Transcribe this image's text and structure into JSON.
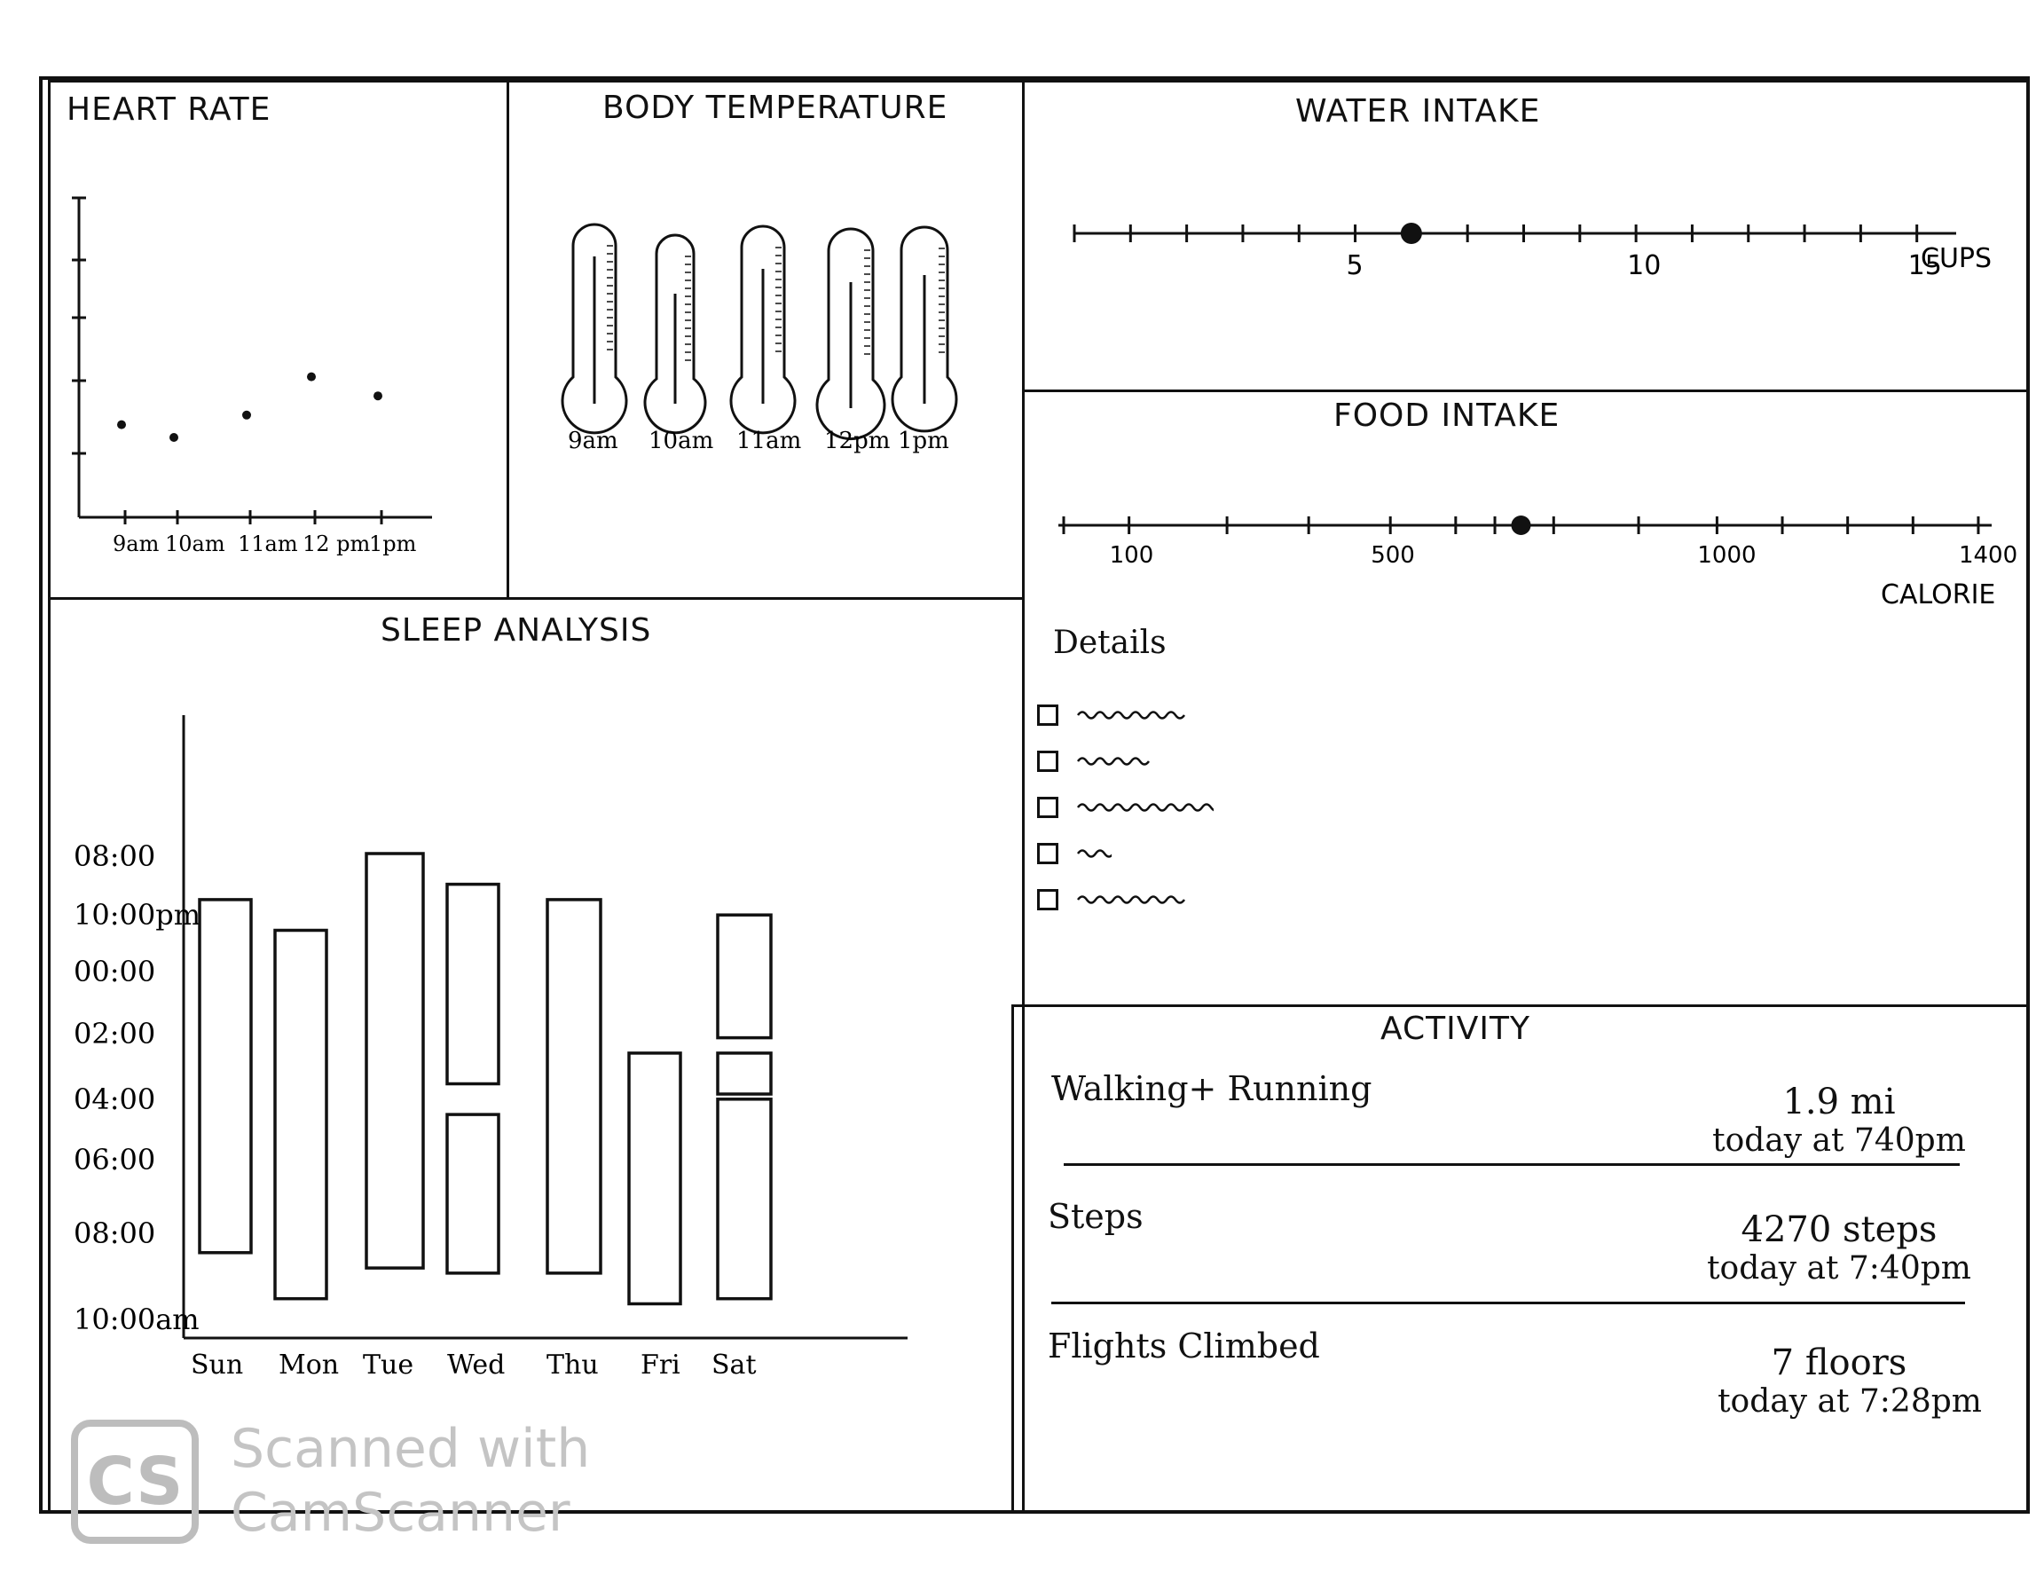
{
  "heart_rate": {
    "title": "HEART RATE",
    "x_ticks": [
      "9am",
      "10am",
      "11am",
      "12 pm",
      "1pm"
    ],
    "points": [
      {
        "x": "9am",
        "level": 0.29
      },
      {
        "x": "10am",
        "level": 0.25
      },
      {
        "x": "11am",
        "level": 0.32
      },
      {
        "x": "12 pm",
        "level": 0.44
      },
      {
        "x": "1pm",
        "level": 0.38
      }
    ]
  },
  "body_temperature": {
    "title": "BODY TEMPERATURE",
    "times": [
      "9am",
      "10am",
      "11am",
      "12pm",
      "1pm"
    ]
  },
  "water_intake": {
    "title": "WATER INTAKE",
    "labels": [
      "5",
      "10",
      "15"
    ],
    "unit": "CUPS",
    "value": 6
  },
  "food_intake": {
    "title": "FOOD INTAKE",
    "labels": [
      "100",
      "500",
      "1000",
      "1400"
    ],
    "unit": "CALORIE",
    "value": 700,
    "details_label": "Details",
    "detail_count": 5
  },
  "sleep_analysis": {
    "title": "SLEEP ANALYSIS",
    "y_labels": [
      "08:00",
      "10:00pm",
      "00:00",
      "02:00",
      "04:00",
      "06:00",
      "08:00",
      "10:00am"
    ],
    "days": [
      "Sun",
      "Mon",
      "Tue",
      "Wed",
      "Thu",
      "Fri",
      "Sat"
    ]
  },
  "activity": {
    "title": "ACTIVITY",
    "rows": [
      {
        "label": "Walking+ Running",
        "value": "1.9 mi",
        "time": "today at 740pm"
      },
      {
        "label": "Steps",
        "value": "4270 steps",
        "time": "today at 7:40pm"
      },
      {
        "label": "Flights Climbed",
        "value": "7 floors",
        "time": "today at 7:28pm"
      }
    ]
  },
  "watermark": {
    "logo": "CS",
    "line1": "Scanned with",
    "line2": "CamScanner"
  },
  "chart_data": {
    "type": "bar",
    "title": "SLEEP ANALYSIS",
    "categories": [
      "Sun",
      "Mon",
      "Tue",
      "Wed",
      "Thu",
      "Fri",
      "Sat"
    ],
    "y_tick_labels": [
      "08:00",
      "10:00pm",
      "00:00",
      "02:00",
      "04:00",
      "06:00",
      "08:00",
      "10:00am"
    ],
    "sleep_segments": [
      {
        "day": "Sun",
        "segments": [
          [
            "21:30",
            "09:00"
          ]
        ]
      },
      {
        "day": "Mon",
        "segments": [
          [
            "22:30",
            "10:30"
          ]
        ]
      },
      {
        "day": "Tue",
        "segments": [
          [
            "20:00",
            "09:30"
          ]
        ]
      },
      {
        "day": "Wed",
        "segments": [
          [
            "21:00",
            "03:30"
          ],
          [
            "04:30",
            "09:40"
          ]
        ]
      },
      {
        "day": "Thu",
        "segments": [
          [
            "21:30",
            "09:40"
          ]
        ]
      },
      {
        "day": "Fri",
        "segments": [
          [
            "02:30",
            "10:40"
          ]
        ]
      },
      {
        "day": "Sat",
        "segments": [
          [
            "22:00",
            "02:00"
          ],
          [
            "02:30",
            "03:50"
          ],
          [
            "04:00",
            "10:30"
          ]
        ]
      }
    ]
  }
}
